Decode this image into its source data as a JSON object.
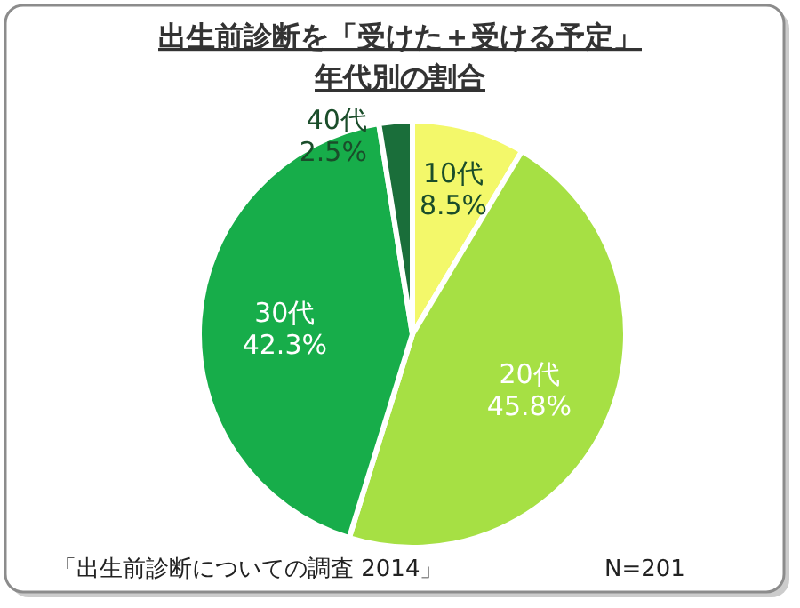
{
  "chart_data": {
    "type": "pie",
    "title": "出生前診断を「受けた＋受ける予定」",
    "subtitle": "年代別の割合",
    "categories": [
      "10代",
      "20代",
      "30代",
      "40代"
    ],
    "values": [
      8.5,
      45.8,
      42.3,
      2.5
    ],
    "value_labels": [
      "8.5%",
      "45.8%",
      "42.3%",
      "2.5%"
    ],
    "colors": [
      "#f3f86a",
      "#a6e044",
      "#17ad4a",
      "#1a6e3a"
    ],
    "annotations": [
      "「出生前診断についての調査 2014」",
      "N=201"
    ]
  }
}
